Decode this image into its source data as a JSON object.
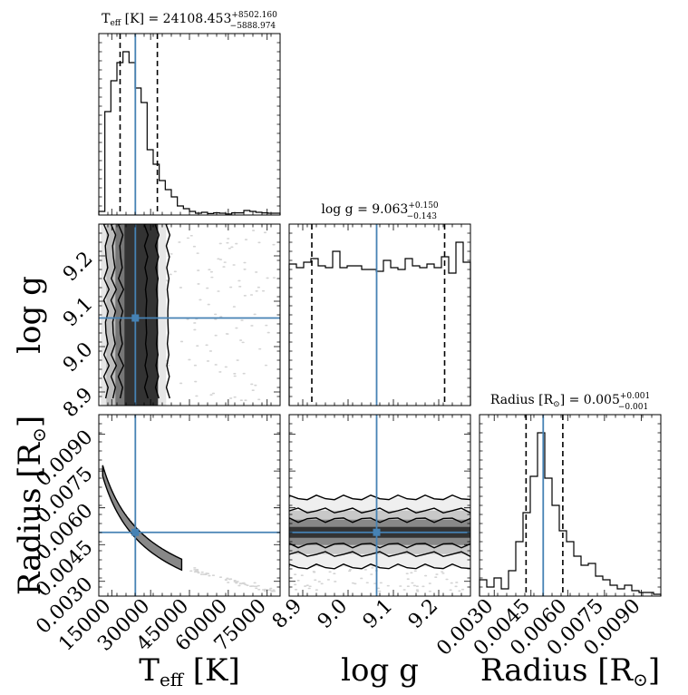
{
  "chart_data": {
    "type": "corner",
    "parameters": [
      "Teff",
      "logg",
      "Radius"
    ],
    "truths": {
      "Teff": 24108.453,
      "logg": 9.063,
      "Radius": 0.005
    },
    "titles": [
      {
        "param": "Teff",
        "label": "T",
        "sub": "eff",
        "rest": " [K] = 24108.453",
        "plus": "+8502.160",
        "minus": "−5888.974"
      },
      {
        "param": "logg",
        "label": "log g = 9.063",
        "sub": "",
        "rest": "",
        "plus": "+0.150",
        "minus": "−0.143"
      },
      {
        "param": "Radius",
        "label": "Radius [R",
        "sub": "⊙",
        "rest": "] = 0.005",
        "plus": "+0.001",
        "minus": "−0.001"
      }
    ],
    "axis_labels": {
      "x": [
        "T",
        "log g",
        "Radius [R"
      ],
      "x_sub": [
        "eff",
        "",
        "⊙"
      ],
      "x_rest": [
        " [K]",
        "",
        "]"
      ],
      "y": [
        "log g",
        "Radius [R"
      ],
      "y_sub": [
        "",
        "⊙"
      ],
      "y_rest": [
        "",
        "]"
      ]
    },
    "ranges": {
      "Teff": [
        10000,
        80000
      ],
      "logg": [
        8.87,
        9.27
      ],
      "Radius": [
        0.0024,
        0.0098
      ]
    },
    "ticks": {
      "Teff": [
        "15000",
        "30000",
        "45000",
        "60000",
        "75000"
      ],
      "logg": [
        "8.9",
        "9.0",
        "9.1",
        "9.2"
      ],
      "Radius": [
        "0.0030",
        "0.0045",
        "0.0060",
        "0.0075",
        "0.0090"
      ]
    },
    "quantiles": {
      "Teff": [
        18220,
        24108,
        32610
      ],
      "logg": [
        8.92,
        9.063,
        9.213
      ],
      "Radius": [
        0.0043,
        0.005,
        0.0058
      ]
    },
    "histograms": {
      "Teff": [
        0.02,
        0.57,
        0.74,
        0.84,
        0.9,
        0.84,
        0.7,
        0.62,
        0.36,
        0.28,
        0.19,
        0.14,
        0.1,
        0.05,
        0.035,
        0.02,
        0.01,
        0.015,
        0.008,
        0.012,
        0.01,
        0.006,
        0.012,
        0.012,
        0.025,
        0.02,
        0.015,
        0.012,
        0.01,
        0.01
      ],
      "logg": [
        0.78,
        0.76,
        0.79,
        0.81,
        0.77,
        0.76,
        0.85,
        0.76,
        0.77,
        0.77,
        0.75,
        0.75,
        0.74,
        0.8,
        0.76,
        0.75,
        0.81,
        0.77,
        0.76,
        0.78,
        0.76,
        0.82,
        0.73,
        0.9,
        0.79
      ],
      "Radius": [
        0.09,
        0.05,
        0.1,
        0.04,
        0.14,
        0.3,
        0.46,
        0.66,
        0.9,
        0.65,
        0.5,
        0.36,
        0.3,
        0.22,
        0.17,
        0.18,
        0.11,
        0.09,
        0.06,
        0.04,
        0.06,
        0.03,
        0.02,
        0.02,
        0.01
      ]
    },
    "line_color": "#4682b4",
    "grid": false,
    "legend": "none"
  }
}
